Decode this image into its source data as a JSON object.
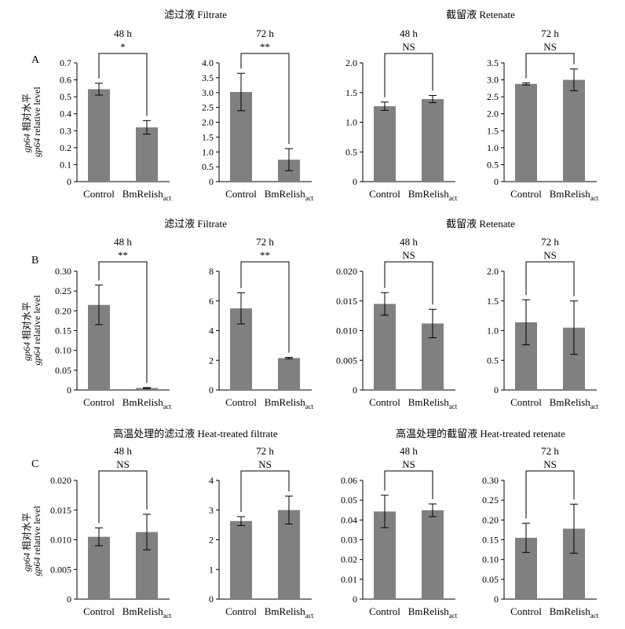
{
  "figure": {
    "rows": [
      {
        "label": "A",
        "group_titles": [
          "滤过液 Filtrate",
          "截留液 Retenate"
        ],
        "ylabel": {
          "gene": "gp64",
          "cn": "相对水平",
          "en": "relative level"
        }
      },
      {
        "label": "B",
        "group_titles": [
          "滤过液 Filtrate",
          "截留液 Retenate"
        ],
        "ylabel": {
          "gene": "gp64",
          "cn": "相对水平",
          "en": "relative level"
        }
      },
      {
        "label": "C",
        "group_titles": [
          "高温处理的滤过液 Heat-treated filtrate",
          "高温处理的截留液 Heat-treated retenate"
        ],
        "ylabel": {
          "gene": "gp64",
          "cn": "相对水平",
          "en": "relative level"
        }
      }
    ]
  },
  "chart_data": [
    {
      "type": "bar",
      "row": "A",
      "col": 1,
      "title": "48 h",
      "significance": "*",
      "categories": [
        "Control",
        "BmRelish_act"
      ],
      "category_labels": [
        {
          "main": "Control",
          "sub": ""
        },
        {
          "main": "BmRelish",
          "sub": "act"
        }
      ],
      "values": [
        0.545,
        0.32
      ],
      "errors": [
        0.035,
        0.04
      ],
      "ylim": [
        0,
        0.7
      ],
      "yticks": [
        "0",
        "0.1",
        "0.2",
        "0.3",
        "0.4",
        "0.5",
        "0.6",
        "0.7"
      ],
      "bar_color": "#808080"
    },
    {
      "type": "bar",
      "row": "A",
      "col": 2,
      "title": "72 h",
      "significance": "**",
      "categories": [
        "Control",
        "BmRelish_act"
      ],
      "category_labels": [
        {
          "main": "Control",
          "sub": ""
        },
        {
          "main": "BmRelish",
          "sub": "act"
        }
      ],
      "values": [
        3.02,
        0.74
      ],
      "errors": [
        0.63,
        0.37
      ],
      "ylim": [
        0,
        4.0
      ],
      "yticks": [
        "0",
        "0.5",
        "1.0",
        "1.5",
        "2.0",
        "2.5",
        "3.0",
        "3.5",
        "4.0"
      ],
      "bar_color": "#808080"
    },
    {
      "type": "bar",
      "row": "A",
      "col": 3,
      "title": "48 h",
      "significance": "NS",
      "categories": [
        "Control",
        "BmRelish_act"
      ],
      "category_labels": [
        {
          "main": "Control",
          "sub": ""
        },
        {
          "main": "BmRelish",
          "sub": "act"
        }
      ],
      "values": [
        1.27,
        1.39
      ],
      "errors": [
        0.07,
        0.06
      ],
      "ylim": [
        0,
        2.0
      ],
      "yticks": [
        "0",
        "0.5",
        "1.0",
        "1.5",
        "2.0"
      ],
      "bar_color": "#808080"
    },
    {
      "type": "bar",
      "row": "A",
      "col": 4,
      "title": "72 h",
      "significance": "NS",
      "categories": [
        "Control",
        "BmRelish_act"
      ],
      "category_labels": [
        {
          "main": "Control",
          "sub": ""
        },
        {
          "main": "BmRelish",
          "sub": "act"
        }
      ],
      "values": [
        2.88,
        3.0
      ],
      "errors": [
        0.03,
        0.32
      ],
      "ylim": [
        0,
        3.5
      ],
      "yticks": [
        "0",
        "0.5",
        "1.0",
        "1.5",
        "2.0",
        "2.5",
        "3.0",
        "3.5"
      ],
      "bar_color": "#808080"
    },
    {
      "type": "bar",
      "row": "B",
      "col": 1,
      "title": "48 h",
      "significance": "**",
      "categories": [
        "Control",
        "BmRelish_act"
      ],
      "category_labels": [
        {
          "main": "Control",
          "sub": ""
        },
        {
          "main": "BmRelish",
          "sub": "act"
        }
      ],
      "values": [
        0.215,
        0.005
      ],
      "errors": [
        0.05,
        0.001
      ],
      "ylim": [
        0,
        0.3
      ],
      "yticks": [
        "0",
        "0.05",
        "0.10",
        "0.15",
        "0.20",
        "0.25",
        "0.30"
      ],
      "bar_color": "#808080"
    },
    {
      "type": "bar",
      "row": "B",
      "col": 2,
      "title": "72 h",
      "significance": "**",
      "categories": [
        "Control",
        "BmRelish_act"
      ],
      "category_labels": [
        {
          "main": "Control",
          "sub": ""
        },
        {
          "main": "BmRelish",
          "sub": "act"
        }
      ],
      "values": [
        5.5,
        2.15
      ],
      "errors": [
        1.05,
        0.05
      ],
      "ylim": [
        0,
        8
      ],
      "yticks": [
        "0",
        "2",
        "4",
        "6",
        "8"
      ],
      "bar_color": "#808080"
    },
    {
      "type": "bar",
      "row": "B",
      "col": 3,
      "title": "48 h",
      "significance": "NS",
      "categories": [
        "Control",
        "BmRelish_act"
      ],
      "category_labels": [
        {
          "main": "Control",
          "sub": ""
        },
        {
          "main": "BmRelish",
          "sub": "act"
        }
      ],
      "values": [
        0.0145,
        0.0112
      ],
      "errors": [
        0.0019,
        0.0024
      ],
      "ylim": [
        0,
        0.02
      ],
      "yticks": [
        "0",
        "0.005",
        "0.010",
        "0.015",
        "0.020"
      ],
      "bar_color": "#808080"
    },
    {
      "type": "bar",
      "row": "B",
      "col": 4,
      "title": "72 h",
      "significance": "NS",
      "categories": [
        "Control",
        "BmRelish_act"
      ],
      "category_labels": [
        {
          "main": "Control",
          "sub": ""
        },
        {
          "main": "BmRelish",
          "sub": "act"
        }
      ],
      "values": [
        1.14,
        1.05
      ],
      "errors": [
        0.38,
        0.45
      ],
      "ylim": [
        0,
        2.0
      ],
      "yticks": [
        "0",
        "0.5",
        "1.0",
        "1.5",
        "2.0"
      ],
      "bar_color": "#808080"
    },
    {
      "type": "bar",
      "row": "C",
      "col": 1,
      "title": "48 h",
      "significance": "NS",
      "categories": [
        "Control",
        "BmRelish_act"
      ],
      "category_labels": [
        {
          "main": "Control",
          "sub": ""
        },
        {
          "main": "BmRelish",
          "sub": "act"
        }
      ],
      "values": [
        0.0105,
        0.0113
      ],
      "errors": [
        0.0015,
        0.003
      ],
      "ylim": [
        0,
        0.02
      ],
      "yticks": [
        "0",
        "0.005",
        "0.010",
        "0.015",
        "0.020"
      ],
      "bar_color": "#808080"
    },
    {
      "type": "bar",
      "row": "C",
      "col": 2,
      "title": "72 h",
      "significance": "NS",
      "categories": [
        "Control",
        "BmRelish_act"
      ],
      "category_labels": [
        {
          "main": "Control",
          "sub": ""
        },
        {
          "main": "BmRelish",
          "sub": "act"
        }
      ],
      "values": [
        2.63,
        3.0
      ],
      "errors": [
        0.15,
        0.47
      ],
      "ylim": [
        0,
        4
      ],
      "yticks": [
        "0",
        "1",
        "2",
        "3",
        "4"
      ],
      "bar_color": "#808080"
    },
    {
      "type": "bar",
      "row": "C",
      "col": 3,
      "title": "48 h",
      "significance": "NS",
      "categories": [
        "Control",
        "BmRelish_act"
      ],
      "category_labels": [
        {
          "main": "Control",
          "sub": ""
        },
        {
          "main": "BmRelish",
          "sub": "act"
        }
      ],
      "values": [
        0.0443,
        0.0449
      ],
      "errors": [
        0.0082,
        0.0032
      ],
      "ylim": [
        0,
        0.06
      ],
      "yticks": [
        "0",
        "0.01",
        "0.02",
        "0.03",
        "0.04",
        "0.05",
        "0.06"
      ],
      "bar_color": "#808080"
    },
    {
      "type": "bar",
      "row": "C",
      "col": 4,
      "title": "72 h",
      "significance": "NS",
      "categories": [
        "Control",
        "BmRelish_act"
      ],
      "category_labels": [
        {
          "main": "Control",
          "sub": ""
        },
        {
          "main": "BmRelish",
          "sub": "act"
        }
      ],
      "values": [
        0.155,
        0.178
      ],
      "errors": [
        0.037,
        0.062
      ],
      "ylim": [
        0,
        0.3
      ],
      "yticks": [
        "0",
        "0.05",
        "0.10",
        "0.15",
        "0.20",
        "0.25",
        "0.30"
      ],
      "bar_color": "#808080"
    }
  ]
}
